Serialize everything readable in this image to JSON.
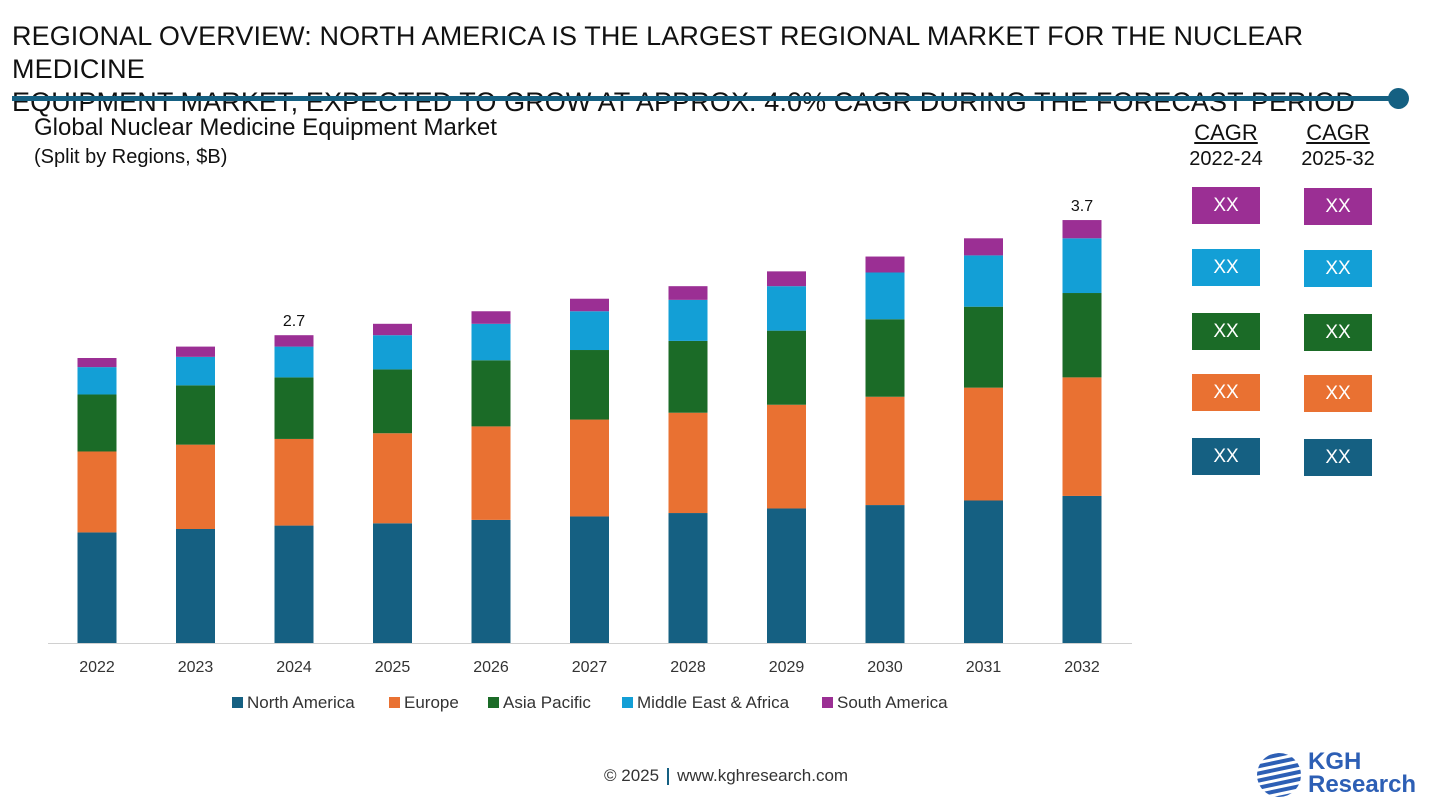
{
  "header": {
    "title_line1": "REGIONAL OVERVIEW: NORTH AMERICA IS THE LARGEST REGIONAL MARKET FOR THE NUCLEAR MEDICINE",
    "title_line2": "EQUIPMENT MARKET, EXPECTED TO GROW AT APPROX. 4.0% CAGR DURING THE FORECAST PERIOD"
  },
  "chart_data": {
    "type": "bar",
    "stacked": true,
    "title": "Global Nuclear Medicine Equipment Market",
    "subtitle": "(Split by Regions, $B)",
    "categories": [
      "2022",
      "2023",
      "2024",
      "2025",
      "2026",
      "2027",
      "2028",
      "2029",
      "2030",
      "2031",
      "2032"
    ],
    "series": [
      {
        "name": "North America",
        "color": "#156082",
        "values": [
          0.97,
          1.0,
          1.03,
          1.05,
          1.08,
          1.11,
          1.14,
          1.18,
          1.21,
          1.25,
          1.29
        ]
      },
      {
        "name": "Europe",
        "color": "#e97132",
        "values": [
          0.71,
          0.74,
          0.76,
          0.79,
          0.82,
          0.85,
          0.88,
          0.91,
          0.95,
          0.99,
          1.04
        ]
      },
      {
        "name": "Asia Pacific",
        "color": "#1b6b27",
        "values": [
          0.5,
          0.52,
          0.54,
          0.56,
          0.58,
          0.61,
          0.63,
          0.65,
          0.68,
          0.71,
          0.74
        ]
      },
      {
        "name": "Middle East & Africa",
        "color": "#139fd6",
        "values": [
          0.24,
          0.25,
          0.27,
          0.3,
          0.32,
          0.34,
          0.36,
          0.39,
          0.41,
          0.45,
          0.48
        ]
      },
      {
        "name": "South America",
        "color": "#9b2f94",
        "values": [
          0.08,
          0.09,
          0.1,
          0.1,
          0.11,
          0.11,
          0.12,
          0.13,
          0.14,
          0.15,
          0.16
        ]
      }
    ],
    "data_labels": [
      {
        "category": "2024",
        "text": "2.7"
      },
      {
        "category": "2032",
        "text": "3.7"
      }
    ],
    "ylim": [
      0,
      3.9
    ],
    "grid": false,
    "legend": "bottom"
  },
  "cagr": {
    "columns": [
      {
        "title": "CAGR",
        "period": "2022-24"
      },
      {
        "title": "CAGR",
        "period": "2025-32"
      }
    ],
    "rows": [
      {
        "region": "South America",
        "color": "#9b2f94",
        "values": [
          "XX",
          "XX"
        ]
      },
      {
        "region": "Middle East & Africa",
        "color": "#139fd6",
        "values": [
          "XX",
          "XX"
        ]
      },
      {
        "region": "Asia Pacific",
        "color": "#1b6b27",
        "values": [
          "XX",
          "XX"
        ]
      },
      {
        "region": "Europe",
        "color": "#e97132",
        "values": [
          "XX",
          "XX"
        ]
      },
      {
        "region": "North America",
        "color": "#156082",
        "values": [
          "XX",
          "XX"
        ]
      }
    ]
  },
  "footer": {
    "copyright": "© 2025",
    "website": "www.kghresearch.com"
  },
  "logo": {
    "line1": "KGH",
    "line2": "Research"
  }
}
